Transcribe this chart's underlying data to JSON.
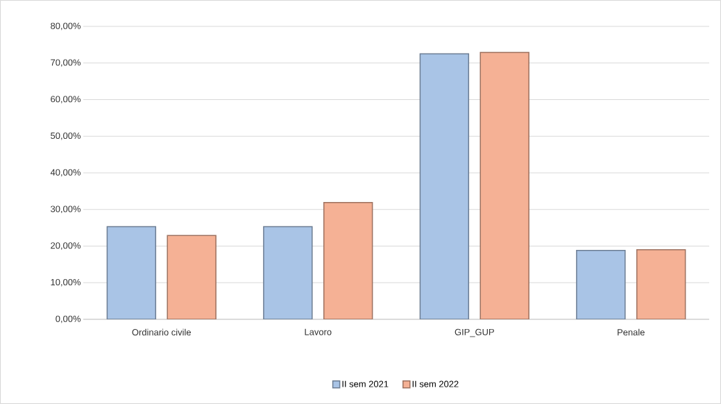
{
  "chart_data": {
    "type": "bar",
    "categories": [
      "Ordinario civile",
      "Lavoro",
      "GIP_GUP",
      "Penale"
    ],
    "series": [
      {
        "name": "II sem 2021",
        "color": "#a9c4e6",
        "values": [
          25.3,
          25.3,
          72.5,
          18.8
        ]
      },
      {
        "name": "II sem 2022",
        "color": "#f5b195",
        "values": [
          22.9,
          31.9,
          72.9,
          19.0
        ]
      }
    ],
    "ylim": [
      0,
      80
    ],
    "yticks": [
      {
        "value": 0,
        "label": "0,00%"
      },
      {
        "value": 10,
        "label": "10,00%"
      },
      {
        "value": 20,
        "label": "20,00%"
      },
      {
        "value": 30,
        "label": "30,00%"
      },
      {
        "value": 40,
        "label": "40,00%"
      },
      {
        "value": 50,
        "label": "50,00%"
      },
      {
        "value": 60,
        "label": "60,00%"
      },
      {
        "value": 70,
        "label": "70,00%"
      },
      {
        "value": 80,
        "label": "80,00%"
      }
    ],
    "grid": "y",
    "legend": "bottom"
  }
}
